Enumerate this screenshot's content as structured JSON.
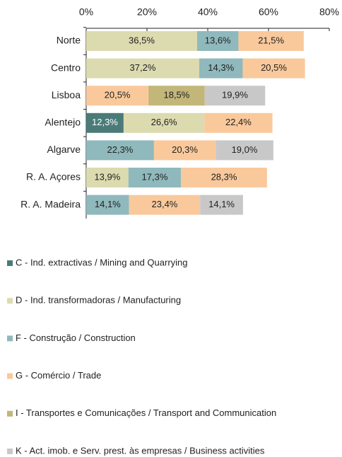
{
  "chart_data": {
    "type": "stacked-bar-horizontal",
    "categories": [
      "Norte",
      "Centro",
      "Lisboa",
      "Alentejo",
      "Algarve",
      "R. A. Açores",
      "R. A. Madeira"
    ],
    "xlim": [
      0,
      80
    ],
    "xticks": [
      {
        "value": 0,
        "label": "0%"
      },
      {
        "value": 20,
        "label": "20%"
      },
      {
        "value": 40,
        "label": "40%"
      },
      {
        "value": 60,
        "label": "60%"
      },
      {
        "value": 80,
        "label": "80%"
      }
    ],
    "series": [
      {
        "name": "C - Ind. extractivas / Mining and Quarrying",
        "color": "#4b7b78",
        "values": [
          null,
          null,
          null,
          12.3,
          null,
          null,
          null
        ],
        "value_labels": [
          null,
          null,
          null,
          "12,3%",
          null,
          null,
          null
        ]
      },
      {
        "name": "D - Ind. transformadoras / Manufacturing",
        "color": "#dcdbb0",
        "values": [
          36.5,
          37.2,
          null,
          26.6,
          null,
          13.9,
          null
        ],
        "value_labels": [
          "36,5%",
          "37,2%",
          null,
          "26,6%",
          null,
          "13,9%",
          null
        ]
      },
      {
        "name": "F - Construção / Construction",
        "color": "#8fb9bc",
        "values": [
          13.6,
          14.3,
          null,
          null,
          22.3,
          17.3,
          14.1
        ],
        "value_labels": [
          "13,6%",
          "14,3%",
          null,
          null,
          "22,3%",
          "17,3%",
          "14,1%"
        ]
      },
      {
        "name": "G - Comércio / Trade",
        "color": "#f9c99c",
        "values": [
          21.5,
          20.5,
          20.5,
          22.4,
          20.3,
          28.3,
          23.4
        ],
        "value_labels": [
          "21,5%",
          "20,5%",
          "20,5%",
          "22,4%",
          "20,3%",
          "28,3%",
          "23,4%"
        ]
      },
      {
        "name": "I - Transportes e Comunicações / Transport and Communication",
        "color": "#c2b679",
        "values": [
          null,
          null,
          18.5,
          null,
          null,
          null,
          null
        ],
        "value_labels": [
          null,
          null,
          "18,5%",
          null,
          null,
          null,
          null
        ]
      },
      {
        "name": "K - Act. imob. e Serv. prest. às empresas / Business activities",
        "color": "#c8c8c8",
        "values": [
          null,
          null,
          19.9,
          null,
          19.0,
          null,
          14.1
        ],
        "value_labels": [
          null,
          null,
          "19,9%",
          null,
          "19,0%",
          null,
          "14,1%"
        ]
      }
    ]
  }
}
